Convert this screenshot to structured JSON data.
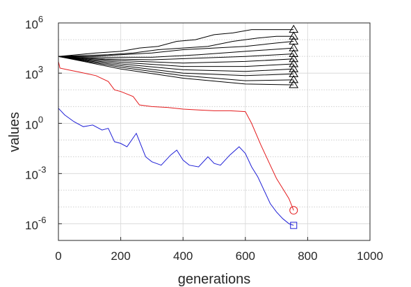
{
  "chart_data": {
    "type": "line",
    "title": "",
    "xlabel": "generations",
    "ylabel": "values",
    "xlim": [
      0,
      1000
    ],
    "ylim_log10": [
      -7,
      6
    ],
    "y_scale": "log",
    "grid": true,
    "minor_grid_y": true,
    "x_ticks": [
      {
        "value": 0,
        "label": "0"
      },
      {
        "value": 200,
        "label": "200"
      },
      {
        "value": 400,
        "label": "400"
      },
      {
        "value": 600,
        "label": "600"
      },
      {
        "value": 800,
        "label": "800"
      },
      {
        "value": 1000,
        "label": "1000"
      }
    ],
    "y_ticks": [
      {
        "exp": 6,
        "base": "10",
        "sup": "6"
      },
      {
        "exp": 3,
        "base": "10",
        "sup": "3"
      },
      {
        "exp": 0,
        "base": "10",
        "sup": "0"
      },
      {
        "exp": -3,
        "base": "10",
        "sup": "-3"
      },
      {
        "exp": -6,
        "base": "10",
        "sup": "-6"
      }
    ],
    "series": [
      {
        "color": "#000000",
        "marker": "triangle",
        "x": [
          0,
          60,
          120,
          200,
          260,
          320,
          380,
          440,
          500,
          560,
          620,
          680,
          755
        ],
        "log10_y": [
          4.0,
          4.1,
          4.2,
          4.3,
          4.5,
          4.6,
          4.9,
          5.0,
          5.3,
          5.4,
          5.6,
          5.6,
          5.6
        ]
      },
      {
        "color": "#000000",
        "marker": "triangle",
        "x": [
          0,
          80,
          160,
          240,
          320,
          400,
          480,
          560,
          640,
          700,
          755
        ],
        "log10_y": [
          4.0,
          4.05,
          4.1,
          4.2,
          4.4,
          4.5,
          4.6,
          4.9,
          5.1,
          5.2,
          5.2
        ]
      },
      {
        "color": "#000000",
        "marker": "triangle",
        "x": [
          0,
          100,
          200,
          300,
          400,
          500,
          600,
          700,
          755
        ],
        "log10_y": [
          4.0,
          4.0,
          4.1,
          4.2,
          4.4,
          4.5,
          4.6,
          4.8,
          4.9
        ]
      },
      {
        "color": "#000000",
        "marker": "triangle",
        "x": [
          0,
          150,
          300,
          450,
          600,
          755
        ],
        "log10_y": [
          4.0,
          3.95,
          3.95,
          4.1,
          4.3,
          4.5
        ]
      },
      {
        "color": "#000000",
        "marker": "triangle",
        "x": [
          0,
          150,
          300,
          450,
          600,
          755
        ],
        "log10_y": [
          4.0,
          3.85,
          3.8,
          3.9,
          4.0,
          4.15
        ]
      },
      {
        "color": "#000000",
        "marker": "triangle",
        "x": [
          0,
          200,
          400,
          600,
          755
        ],
        "log10_y": [
          4.0,
          3.75,
          3.6,
          3.7,
          3.85
        ]
      },
      {
        "color": "#000000",
        "marker": "triangle",
        "x": [
          0,
          200,
          400,
          600,
          755
        ],
        "log10_y": [
          4.0,
          3.65,
          3.4,
          3.4,
          3.55
        ]
      },
      {
        "color": "#000000",
        "marker": "triangle",
        "x": [
          0,
          200,
          400,
          600,
          755
        ],
        "log10_y": [
          4.0,
          3.55,
          3.2,
          3.1,
          3.25
        ]
      },
      {
        "color": "#000000",
        "marker": "triangle",
        "x": [
          0,
          200,
          400,
          600,
          755
        ],
        "log10_y": [
          4.0,
          3.45,
          3.0,
          2.85,
          2.95
        ]
      },
      {
        "color": "#000000",
        "marker": "triangle",
        "x": [
          0,
          200,
          400,
          600,
          755
        ],
        "log10_y": [
          4.0,
          3.35,
          2.85,
          2.55,
          2.6
        ]
      },
      {
        "color": "#000000",
        "marker": "triangle",
        "x": [
          0,
          200,
          400,
          600,
          755
        ],
        "log10_y": [
          4.0,
          3.25,
          2.7,
          2.35,
          2.3
        ]
      },
      {
        "color": "#e41a1c",
        "marker": "circle",
        "x": [
          0,
          5,
          30,
          70,
          120,
          160,
          180,
          200,
          240,
          260,
          300,
          350,
          400,
          450,
          500,
          550,
          600,
          620,
          650,
          680,
          700,
          720,
          740,
          755
        ],
        "log10_y": [
          3.7,
          3.3,
          3.2,
          3.05,
          2.85,
          2.5,
          2.0,
          1.9,
          1.6,
          1.1,
          1.0,
          0.95,
          0.85,
          0.8,
          0.75,
          0.75,
          0.7,
          0.0,
          -1.3,
          -2.5,
          -3.3,
          -3.9,
          -4.5,
          -5.2
        ]
      },
      {
        "color": "#1f1fd6",
        "marker": "square",
        "x": [
          0,
          20,
          50,
          80,
          110,
          140,
          160,
          180,
          200,
          220,
          250,
          280,
          300,
          330,
          360,
          380,
          400,
          420,
          450,
          480,
          500,
          520,
          550,
          580,
          600,
          620,
          640,
          660,
          680,
          700,
          720,
          740,
          755
        ],
        "log10_y": [
          0.9,
          0.5,
          0.1,
          -0.2,
          -0.1,
          -0.4,
          -0.3,
          -1.1,
          -1.2,
          -1.4,
          -0.6,
          -2.0,
          -2.3,
          -2.5,
          -1.9,
          -1.6,
          -2.2,
          -2.5,
          -2.6,
          -2.0,
          -2.4,
          -2.5,
          -1.9,
          -1.4,
          -1.8,
          -2.6,
          -3.2,
          -4.0,
          -4.8,
          -5.3,
          -5.7,
          -6.0,
          -6.1
        ]
      }
    ]
  }
}
